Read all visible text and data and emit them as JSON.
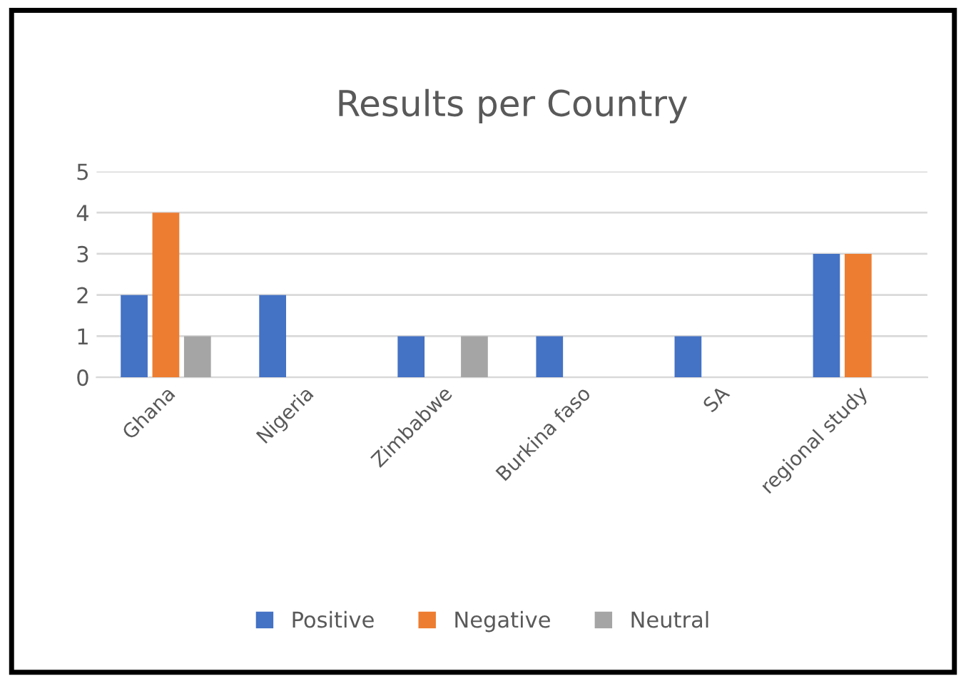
{
  "chart_data": {
    "type": "bar",
    "title": "Results per Country",
    "categories": [
      "Ghana",
      "Nigeria",
      "Zimbabwe",
      "Burkina faso",
      "SA",
      "regional study"
    ],
    "series": [
      {
        "name": "Positive",
        "color": "#4472c4",
        "values": [
          2,
          2,
          1,
          1,
          1,
          3
        ]
      },
      {
        "name": "Negative",
        "color": "#ed7d31",
        "values": [
          4,
          0,
          0,
          0,
          0,
          3
        ]
      },
      {
        "name": "Neutral",
        "color": "#a5a5a5",
        "values": [
          1,
          0,
          1,
          0,
          0,
          0
        ]
      }
    ],
    "ylim": [
      0,
      5
    ],
    "yticks": [
      0,
      1,
      2,
      3,
      4,
      5
    ],
    "grid": "y",
    "legend": "bottom"
  }
}
